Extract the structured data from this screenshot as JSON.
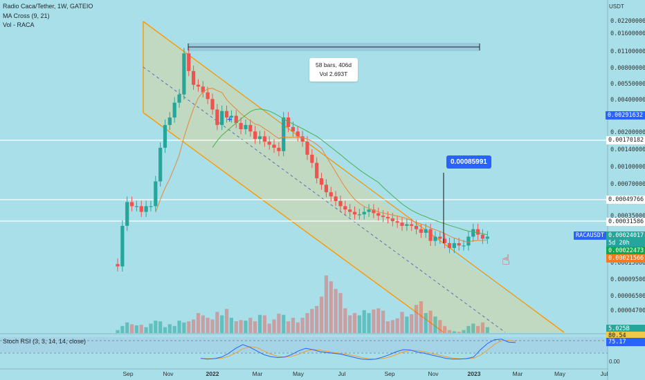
{
  "legend": {
    "symbol": "Radio Caca/Tether, 1W, GATEIO",
    "ma": "MA Cross (9, 21)",
    "vol": "Vol - RACA"
  },
  "currency": "USDT",
  "measure": {
    "bars": "58 bars, 406d",
    "vol": "Vol 2.693T"
  },
  "callout": "0.00085991",
  "price_ticks": [
    "0.02200000",
    "0.01600000",
    "0.01100000",
    "0.00800000",
    "0.00550000",
    "0.00400000",
    "0.00200000",
    "0.00140000",
    "0.00100000",
    "0.00070000",
    "0.00035000",
    "0.00013000",
    "0.00009500",
    "0.00006500",
    "0.00004700"
  ],
  "levels": [
    "0.00291632",
    "0.00170182",
    "0.00049766",
    "0.00031586"
  ],
  "ticker": {
    "name": "RACAUSDT",
    "price": "0.00024017",
    "countdown": "5d 20h",
    "ma_fast": "0.00022473",
    "ma_slow": "0.00021566"
  },
  "vol_value": "5.025B",
  "partial_tick": "400",
  "stoch": {
    "label": "Stoch RSI (3, 3, 14, 14, close)",
    "k": "80.54",
    "d": "75.17",
    "tick": "0.00"
  },
  "time_ticks": [
    "Sep",
    "Nov",
    "2022",
    "Mar",
    "May",
    "Jul",
    "Sep",
    "Nov",
    "2023",
    "Mar",
    "May",
    "Jul"
  ],
  "colors": {
    "up": "#26a69a",
    "down": "#ef5350",
    "channel": "#ff9800",
    "ma_fast": "#e8863a",
    "ma_slow": "#4caf50",
    "accent": "#2962ff",
    "background": "#a8dfe8"
  },
  "chart_data": {
    "type": "candlestick",
    "interval": "1W",
    "weekly_closes": [
      0.00013,
      0.0003,
      0.00049,
      0.00045,
      0.00045,
      0.0004,
      0.00045,
      0.00045,
      0.00075,
      0.0015,
      0.0024,
      0.0028,
      0.0038,
      0.0045,
      0.0105,
      0.0073,
      0.0055,
      0.0053,
      0.0047,
      0.0041,
      0.0033,
      0.0024,
      0.0032,
      0.0028,
      0.0029,
      0.0025,
      0.0022,
      0.0024,
      0.0021,
      0.0018,
      0.0019,
      0.0017,
      0.0016,
      0.0015,
      0.0014,
      0.0028,
      0.0023,
      0.0021,
      0.0019,
      0.0017,
      0.0013,
      0.0011,
      0.0008,
      0.0007,
      0.0006,
      0.00055,
      0.0005,
      0.00045,
      0.00042,
      0.0004,
      0.00038,
      0.00038,
      0.0004,
      0.00042,
      0.00039,
      0.00037,
      0.00036,
      0.00035,
      0.00033,
      0.00032,
      0.0003,
      0.00031,
      0.0003,
      0.00028,
      0.00026,
      0.00028,
      0.00022,
      0.00024,
      0.00023,
      0.00021,
      0.00019,
      0.00021,
      0.0002,
      0.0002,
      0.00024,
      0.00028,
      0.00025,
      0.00023,
      0.00024
    ],
    "weekly_volume_rel": [
      0.05,
      0.12,
      0.18,
      0.15,
      0.13,
      0.14,
      0.1,
      0.16,
      0.21,
      0.2,
      0.1,
      0.15,
      0.12,
      0.21,
      0.18,
      0.2,
      0.23,
      0.34,
      0.3,
      0.26,
      0.23,
      0.36,
      0.3,
      0.41,
      0.26,
      0.2,
      0.22,
      0.21,
      0.26,
      0.2,
      0.31,
      0.3,
      0.16,
      0.23,
      0.33,
      0.31,
      0.2,
      0.26,
      0.18,
      0.26,
      0.34,
      0.41,
      0.46,
      0.62,
      0.98,
      0.88,
      0.75,
      0.68,
      0.42,
      0.3,
      0.34,
      0.3,
      0.39,
      0.34,
      0.4,
      0.42,
      0.38,
      0.2,
      0.22,
      0.25,
      0.36,
      0.28,
      0.32,
      0.48,
      0.54,
      0.34,
      0.38,
      0.28,
      0.22,
      0.12,
      0.05,
      0.03,
      0.02,
      0.05,
      0.12,
      0.16,
      0.12,
      0.18,
      0.1
    ],
    "stoch_k": [
      0.15,
      0.12,
      0.14,
      0.2,
      0.35,
      0.55,
      0.7,
      0.6,
      0.45,
      0.3,
      0.22,
      0.18,
      0.2,
      0.3,
      0.45,
      0.55,
      0.5,
      0.42,
      0.38,
      0.35,
      0.32,
      0.25,
      0.18,
      0.12,
      0.1,
      0.12,
      0.2,
      0.3,
      0.42,
      0.5,
      0.48,
      0.4,
      0.35,
      0.28,
      0.22,
      0.15,
      0.12,
      0.12,
      0.14,
      0.2,
      0.5,
      0.75,
      0.9,
      0.92,
      0.8,
      0.78
    ],
    "ylabel": "USDT",
    "scale": "log"
  }
}
